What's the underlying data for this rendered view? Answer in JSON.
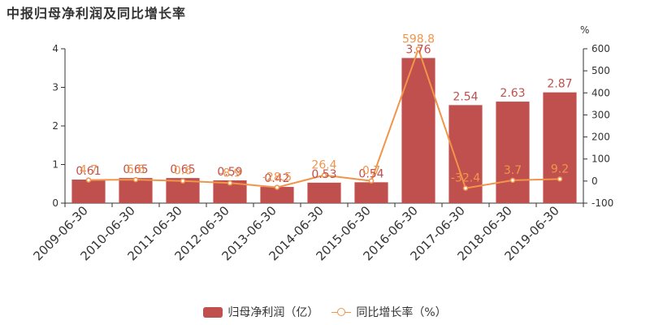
{
  "title": "中报归母净利润及同比增长率",
  "right_axis_unit": "%",
  "colors": {
    "bar": "#c0504d",
    "line": "#f0954a",
    "axis": "#333333",
    "bar_label": "#c0504d",
    "line_label": "#f0954a"
  },
  "legend": {
    "bar_label": "归母净利润（亿）",
    "line_label": "同比增长率（%）"
  },
  "chart_data": {
    "type": "bar",
    "title": "中报归母净利润及同比增长率",
    "categories": [
      "2009-06-30",
      "2010-06-30",
      "2011-06-30",
      "2012-06-30",
      "2013-06-30",
      "2014-06-30",
      "2015-06-30",
      "2016-06-30",
      "2017-06-30",
      "2018-06-30",
      "2019-06-30"
    ],
    "series": [
      {
        "name": "归母净利润（亿）",
        "type": "bar",
        "axis": "left",
        "values": [
          0.61,
          0.65,
          0.65,
          0.59,
          0.42,
          0.53,
          0.54,
          3.76,
          2.54,
          2.63,
          2.87
        ],
        "labels": [
          "0.61",
          "0.65",
          "0.65",
          "0.59",
          "0.42",
          "0.53",
          "0.54",
          "3.76",
          "2.54",
          "2.63",
          "2.87"
        ]
      },
      {
        "name": "同比增长率（%）",
        "type": "line",
        "axis": "right",
        "values": [
          4.7,
          6.6,
          0.6,
          -8.9,
          -28.5,
          26.4,
          0.7,
          598.8,
          -32.4,
          3.7,
          9.2
        ],
        "labels": [
          "4.7",
          "6.6",
          "0.6",
          "-8.9",
          "-28.5",
          "26.4",
          "0.7",
          "598.8",
          "-32.4",
          "3.7",
          "9.2"
        ]
      }
    ],
    "y_left": {
      "ylim": [
        0,
        4
      ],
      "ticks": [
        0,
        1,
        2,
        3,
        4
      ],
      "tick_labels": [
        "0",
        "1",
        "2",
        "3",
        "4"
      ]
    },
    "y_right": {
      "ylim": [
        -100,
        600
      ],
      "ticks": [
        -100,
        0,
        100,
        200,
        300,
        400,
        500,
        600
      ],
      "tick_labels": [
        "-100",
        "0",
        "100",
        "200",
        "300",
        "400",
        "500",
        "600"
      ],
      "unit": "%"
    },
    "grid": false,
    "legend_position": "bottom"
  }
}
